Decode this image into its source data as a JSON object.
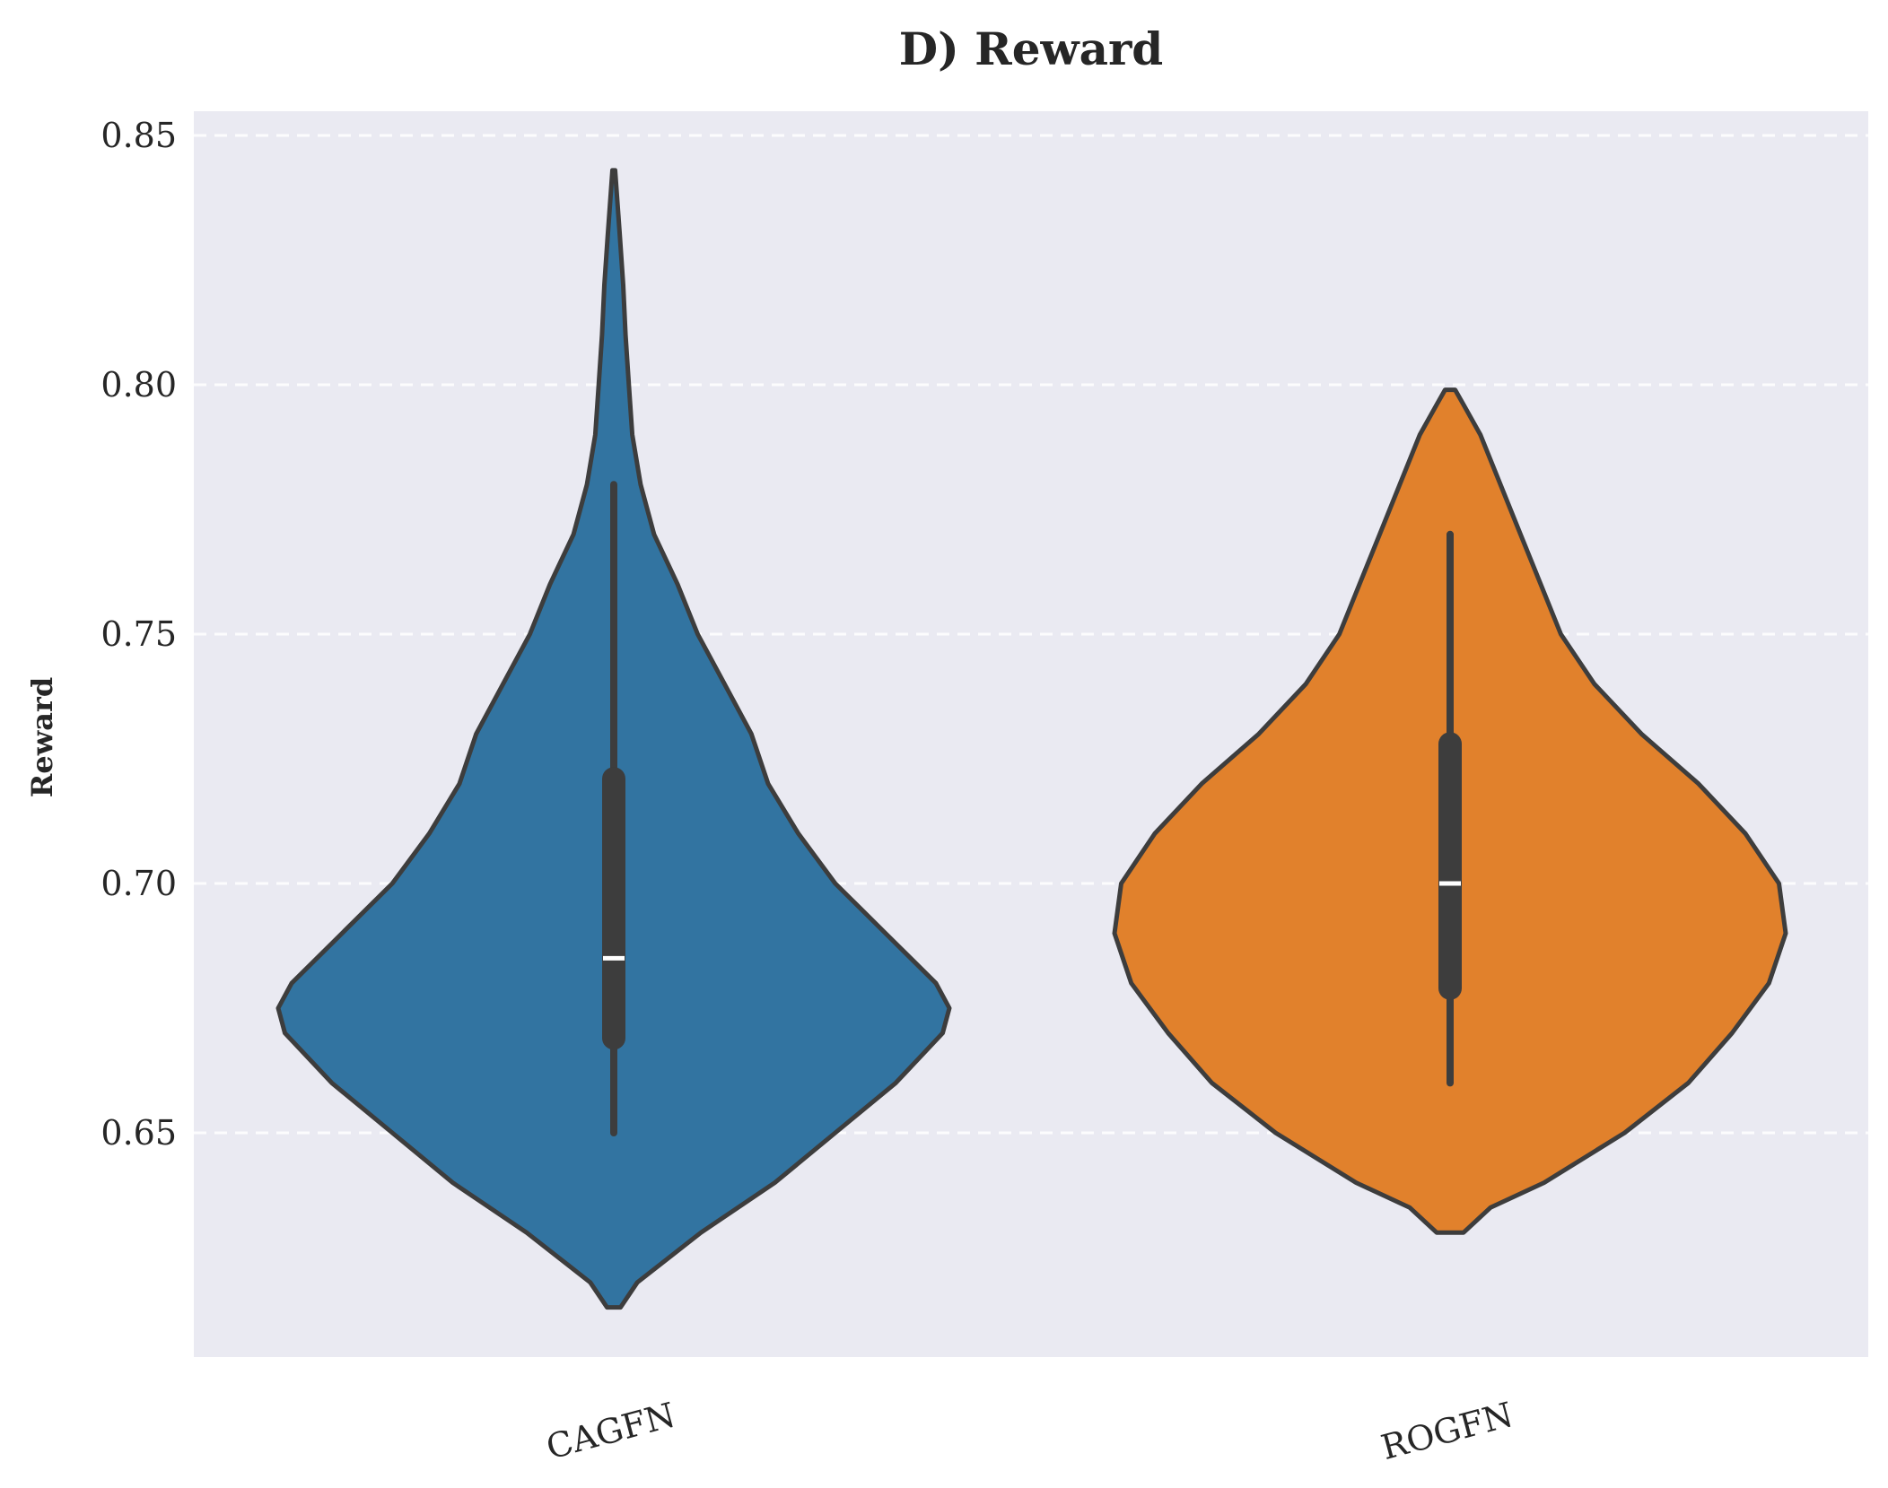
{
  "chart_data": {
    "type": "violin",
    "title": "D) Reward",
    "xlabel": "",
    "ylabel": "Reward",
    "ylim": [
      0.605,
      0.855
    ],
    "yticks": [
      0.65,
      0.7,
      0.75,
      0.8,
      0.85
    ],
    "ytick_labels": [
      "0.65",
      "0.70",
      "0.75",
      "0.80",
      "0.85"
    ],
    "grid": true,
    "categories": [
      "CAGFN",
      "ROGFN"
    ],
    "series": [
      {
        "category": "CAGFN",
        "color": "#3274a1",
        "min": 0.615,
        "max": 0.843,
        "whisker_low": 0.65,
        "whisker_high": 0.78,
        "q1": 0.669,
        "median": 0.685,
        "q3": 0.721,
        "density": [
          [
            0.615,
            0.02
          ],
          [
            0.62,
            0.07
          ],
          [
            0.63,
            0.26
          ],
          [
            0.64,
            0.48
          ],
          [
            0.65,
            0.66
          ],
          [
            0.66,
            0.84
          ],
          [
            0.67,
            0.98
          ],
          [
            0.675,
            1.0
          ],
          [
            0.68,
            0.96
          ],
          [
            0.69,
            0.81
          ],
          [
            0.7,
            0.66
          ],
          [
            0.71,
            0.55
          ],
          [
            0.72,
            0.46
          ],
          [
            0.73,
            0.41
          ],
          [
            0.74,
            0.33
          ],
          [
            0.75,
            0.25
          ],
          [
            0.76,
            0.19
          ],
          [
            0.77,
            0.12
          ],
          [
            0.78,
            0.08
          ],
          [
            0.79,
            0.055
          ],
          [
            0.8,
            0.045
          ],
          [
            0.81,
            0.035
          ],
          [
            0.82,
            0.028
          ],
          [
            0.83,
            0.018
          ],
          [
            0.843,
            0.004
          ]
        ]
      },
      {
        "category": "ROGFN",
        "color": "#e1812c",
        "min": 0.63,
        "max": 0.799,
        "whisker_low": 0.66,
        "whisker_high": 0.77,
        "q1": 0.679,
        "median": 0.7,
        "q3": 0.728,
        "density": [
          [
            0.63,
            0.04
          ],
          [
            0.635,
            0.12
          ],
          [
            0.64,
            0.28
          ],
          [
            0.65,
            0.52
          ],
          [
            0.66,
            0.71
          ],
          [
            0.67,
            0.84
          ],
          [
            0.68,
            0.95
          ],
          [
            0.69,
            1.0
          ],
          [
            0.7,
            0.98
          ],
          [
            0.71,
            0.88
          ],
          [
            0.72,
            0.74
          ],
          [
            0.73,
            0.57
          ],
          [
            0.74,
            0.43
          ],
          [
            0.75,
            0.33
          ],
          [
            0.76,
            0.27
          ],
          [
            0.77,
            0.21
          ],
          [
            0.78,
            0.15
          ],
          [
            0.79,
            0.09
          ],
          [
            0.796,
            0.04
          ],
          [
            0.799,
            0.015
          ]
        ]
      }
    ],
    "colors": {
      "background": "#eaeaf2",
      "outline": "#3d3d3d",
      "median": "#ffffff"
    }
  }
}
